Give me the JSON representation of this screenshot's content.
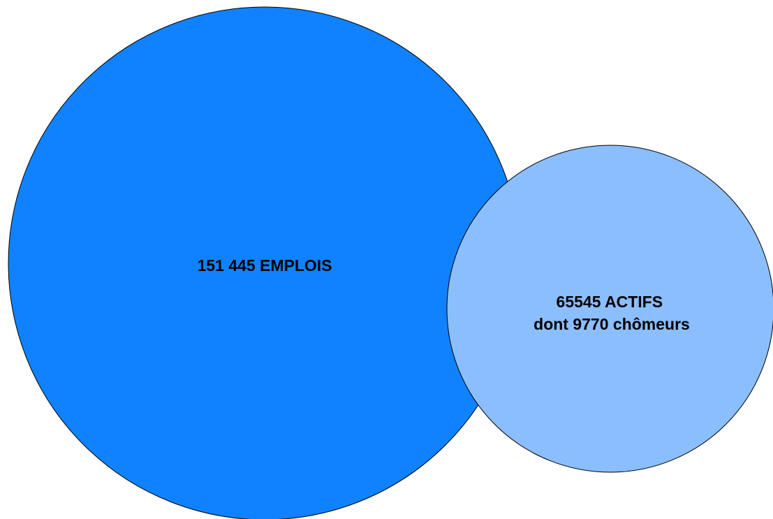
{
  "colors": {
    "large_circle_fill": "#1182ff",
    "small_circle_fill": "#8bbefd",
    "outline": "#000000",
    "background": "#ffffff"
  },
  "circles": [
    {
      "id": "emplois",
      "lines": [
        "151 445 EMPLOIS"
      ]
    },
    {
      "id": "actifs",
      "lines": [
        "65545 ACTIFS",
        "dont 9770 chômeurs"
      ]
    }
  ]
}
